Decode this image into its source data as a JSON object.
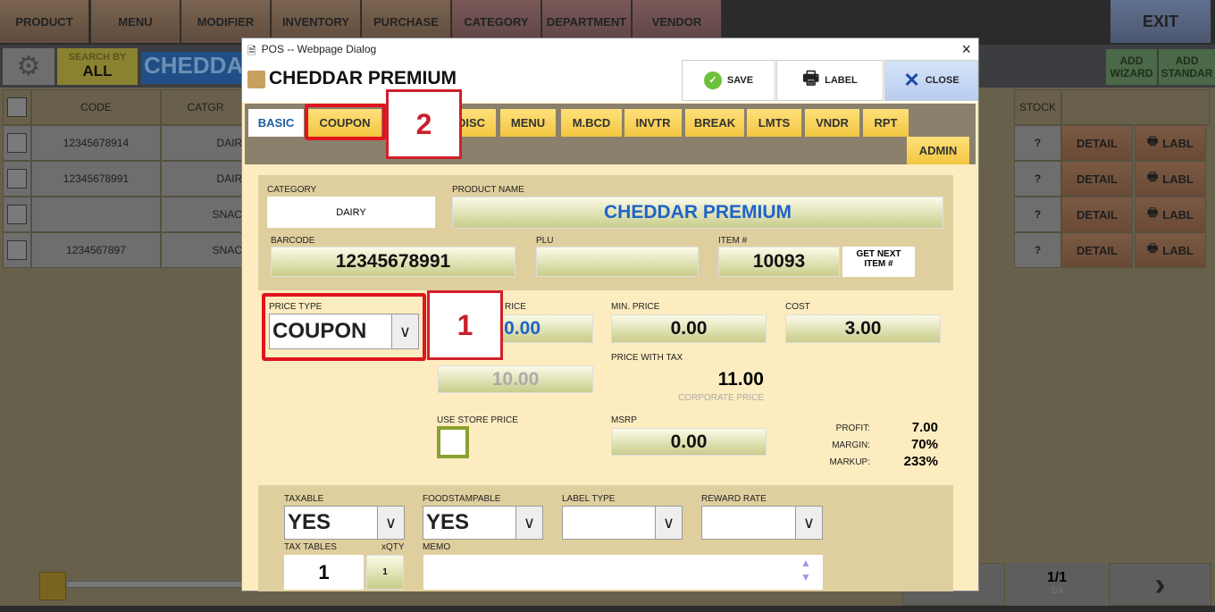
{
  "nav": [
    "PRODUCT",
    "MENU",
    "MODIFIER",
    "INVENTORY",
    "PURCHASE",
    "CATEGORY",
    "DEPARTMENT",
    "VENDOR"
  ],
  "exit": "EXIT",
  "search": {
    "by_label": "SEARCH BY",
    "by_value": "ALL",
    "value": "CHEDDA"
  },
  "add_wizard": "ADD WIZARD",
  "add_standard": "ADD STANDAR",
  "table": {
    "headers": {
      "code": "CODE",
      "category": "CATGR",
      "stock": "STOCK"
    },
    "rows": [
      {
        "code": "12345678914",
        "category": "DAIRY",
        "stock": "?"
      },
      {
        "code": "12345678991",
        "category": "DAIRY",
        "stock": "?"
      },
      {
        "code": "",
        "category": "SNACK",
        "stock": "?"
      },
      {
        "code": "1234567897",
        "category": "SNACK",
        "stock": "?"
      }
    ],
    "detail": "DETAIL",
    "label": "LABL"
  },
  "pager": {
    "page": "1/1",
    "sub": "1/4"
  },
  "dialog": {
    "window_title": "POS -- Webpage Dialog",
    "title": "CHEDDAR PREMIUM",
    "save": "SAVE",
    "label": "LABEL",
    "close": "CLOSE",
    "tabs": [
      "BASIC",
      "COUPON",
      "DISC",
      "MENU",
      "M.BCD",
      "INVTR",
      "BREAK",
      "LMTS",
      "VNDR",
      "RPT",
      "ADMIN"
    ],
    "category_label": "CATEGORY",
    "category": "DAIRY",
    "product_name_label": "PRODUCT NAME",
    "product_name": "CHEDDAR PREMIUM",
    "barcode_label": "BARCODE",
    "barcode": "12345678991",
    "plu_label": "PLU",
    "plu": "",
    "item_label": "ITEM #",
    "item": "10093",
    "get_next": "GET NEXT ITEM #",
    "price_type_label": "PRICE TYPE",
    "price_type": "COUPON",
    "price_label_partial": "RICE",
    "price_partial": "0.00",
    "min_price_label": "MIN. PRICE",
    "min_price": "0.00",
    "cost_label": "COST",
    "cost": "3.00",
    "store_price": "10.00",
    "price_with_tax_label": "PRICE WITH TAX",
    "price_with_tax": "11.00",
    "corporate_price": "CORPORATE PRICE",
    "use_store_price_label": "USE STORE PRICE",
    "msrp_label": "MSRP",
    "msrp": "0.00",
    "profit_label": "PROFIT:",
    "profit": "7.00",
    "margin_label": "MARGIN:",
    "margin": "70%",
    "markup_label": "MARKUP:",
    "markup": "233%",
    "taxable_label": "TAXABLE",
    "taxable": "YES",
    "foodstamp_label": "FOODSTAMPABLE",
    "foodstamp": "YES",
    "label_type_label": "LABEL TYPE",
    "label_type": "",
    "reward_label": "REWARD RATE",
    "reward": "",
    "tax_tables_label": "TAX TABLES",
    "tax_tables": "1",
    "xqty_label": "xQTY",
    "xqty": "1",
    "memo_label": "MEMO",
    "memo": ""
  },
  "annotations": [
    "1",
    "2"
  ]
}
